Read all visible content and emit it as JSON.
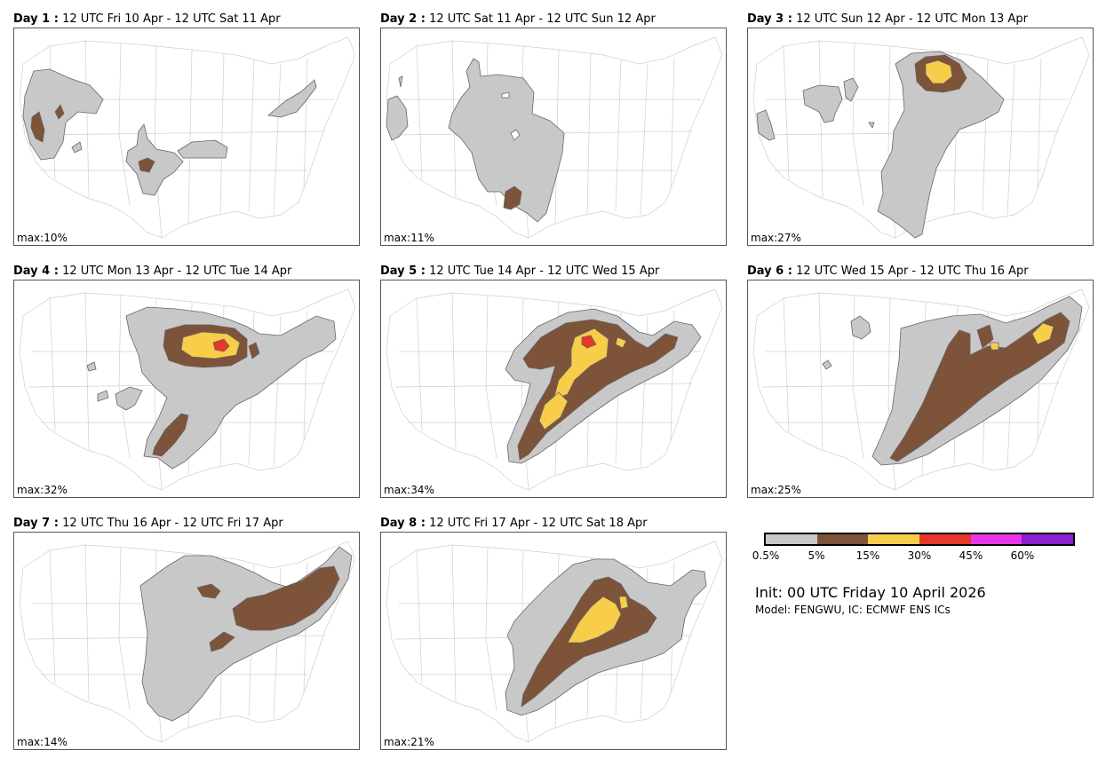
{
  "colors": {
    "c1": "#c8c8c8",
    "c2": "#7d533a",
    "c3": "#f8cd4a",
    "c4": "#e5372a",
    "c5": "#e638e8",
    "c6": "#8b1fd1",
    "border": "#cfcfcf"
  },
  "panels": [
    {
      "day_label": "Day 1 :",
      "period": "12 UTC Fri 10 Apr - 12 UTC Sat 11 Apr",
      "max": "max:10%"
    },
    {
      "day_label": "Day 2 :",
      "period": "12 UTC Sat 11 Apr - 12 UTC Sun 12 Apr",
      "max": "max:11%"
    },
    {
      "day_label": "Day 3 :",
      "period": "12 UTC Sun 12 Apr - 12 UTC Mon 13 Apr",
      "max": "max:27%"
    },
    {
      "day_label": "Day 4 :",
      "period": "12 UTC Mon 13 Apr - 12 UTC Tue 14 Apr",
      "max": "max:32%"
    },
    {
      "day_label": "Day 5 :",
      "period": "12 UTC Tue 14 Apr - 12 UTC Wed 15 Apr",
      "max": "max:34%"
    },
    {
      "day_label": "Day 6 :",
      "period": "12 UTC Wed 15 Apr - 12 UTC Thu 16 Apr",
      "max": "max:25%"
    },
    {
      "day_label": "Day 7 :",
      "period": "12 UTC Thu 16 Apr - 12 UTC Fri 17 Apr",
      "max": "max:14%"
    },
    {
      "day_label": "Day 8 :",
      "period": "12 UTC Fri 17 Apr - 12 UTC Sat 18 Apr",
      "max": "max:21%"
    }
  ],
  "legend": {
    "ticks": [
      "0.5%",
      "5%",
      "15%",
      "30%",
      "45%",
      "60%"
    ]
  },
  "init": "Init: 00 UTC Friday 10 April 2026",
  "model": "Model: FENGWU, IC: ECMWF ENS ICs"
}
